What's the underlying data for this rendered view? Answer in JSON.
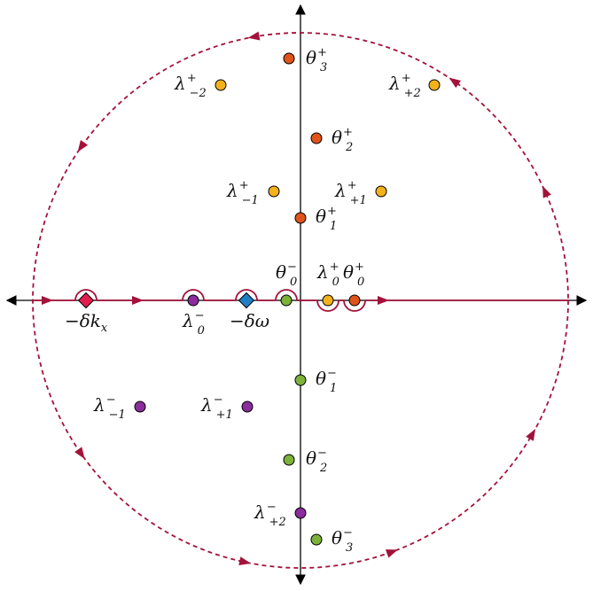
{
  "colors": {
    "axis": "#000000",
    "contour": "#a3123a",
    "theta_plus": "#e0531b",
    "lambda_plus": "#f2b21b",
    "theta_minus": "#7cb13a",
    "lambda_minus": "#8a2c9c",
    "minus_delta_kx": "#e21d4f",
    "minus_delta_omega": "#1f7fc4"
  },
  "points": [
    {
      "key": "theta3p",
      "base": "θ",
      "sub": "3",
      "sup": "+",
      "group": "theta_plus",
      "shape": "circle"
    },
    {
      "key": "theta2p",
      "base": "θ",
      "sub": "2",
      "sup": "+",
      "group": "theta_plus",
      "shape": "circle"
    },
    {
      "key": "theta1p",
      "base": "θ",
      "sub": "1",
      "sup": "+",
      "group": "theta_plus",
      "shape": "circle"
    },
    {
      "key": "theta0p",
      "base": "θ",
      "sub": "0",
      "sup": "+",
      "group": "theta_plus",
      "shape": "circle",
      "indent": true
    },
    {
      "key": "lam_m2p",
      "base": "λ",
      "sub": "−2",
      "sup": "+",
      "group": "lambda_plus",
      "shape": "circle"
    },
    {
      "key": "lam_p2p",
      "base": "λ",
      "sub": "+2",
      "sup": "+",
      "group": "lambda_plus",
      "shape": "circle"
    },
    {
      "key": "lam_m1p",
      "base": "λ",
      "sub": "−1",
      "sup": "+",
      "group": "lambda_plus",
      "shape": "circle"
    },
    {
      "key": "lam_p1p",
      "base": "λ",
      "sub": "+1",
      "sup": "+",
      "group": "lambda_plus",
      "shape": "circle"
    },
    {
      "key": "lam_0p",
      "base": "λ",
      "sub": "0",
      "sup": "+",
      "group": "lambda_plus",
      "shape": "circle",
      "indent": true
    },
    {
      "key": "theta0m",
      "base": "θ",
      "sub": "0",
      "sup": "−",
      "group": "theta_minus",
      "shape": "circle",
      "indent": true
    },
    {
      "key": "theta1m",
      "base": "θ",
      "sub": "1",
      "sup": "−",
      "group": "theta_minus",
      "shape": "circle"
    },
    {
      "key": "theta2m",
      "base": "θ",
      "sub": "2",
      "sup": "−",
      "group": "theta_minus",
      "shape": "circle"
    },
    {
      "key": "theta3m",
      "base": "θ",
      "sub": "3",
      "sup": "−",
      "group": "theta_minus",
      "shape": "circle"
    },
    {
      "key": "lam_0m",
      "base": "λ",
      "sub": "0",
      "sup": "−",
      "group": "lambda_minus",
      "shape": "circle",
      "indent": true
    },
    {
      "key": "lam_m1m",
      "base": "λ",
      "sub": "−1",
      "sup": "−",
      "group": "lambda_minus",
      "shape": "circle"
    },
    {
      "key": "lam_p1m",
      "base": "λ",
      "sub": "+1",
      "sup": "−",
      "group": "lambda_minus",
      "shape": "circle"
    },
    {
      "key": "lam_p2m",
      "base": "λ",
      "sub": "+2",
      "sup": "−",
      "group": "lambda_minus",
      "shape": "circle"
    },
    {
      "key": "mdkx",
      "base": "−δk",
      "sub": "x",
      "sup": "",
      "group": "minus_delta_kx",
      "shape": "diamond",
      "indent": true
    },
    {
      "key": "mdomega",
      "base": "−δω",
      "sub": "",
      "sup": "",
      "group": "minus_delta_omega",
      "shape": "diamond",
      "indent": true
    }
  ]
}
